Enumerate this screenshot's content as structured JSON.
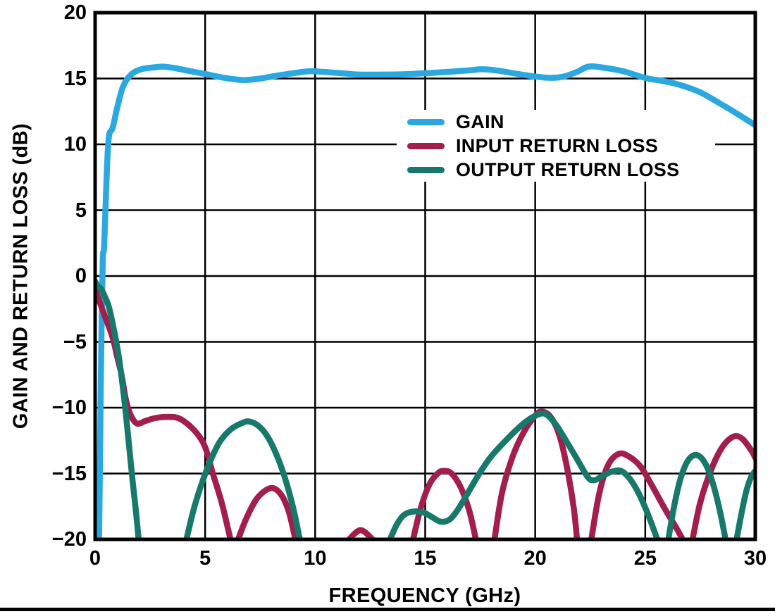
{
  "figure": {
    "background": "#ffffff",
    "frame_color": "#000000",
    "grid_color": "#000000"
  },
  "chart_data": {
    "type": "line",
    "title": "",
    "xlabel": "FREQUENCY (GHz)",
    "ylabel": "GAIN AND RETURN LOSS (dB)",
    "xlim": [
      0,
      30
    ],
    "ylim": [
      -20,
      20
    ],
    "xticks": [
      0,
      5,
      10,
      15,
      20,
      25,
      30
    ],
    "xtick_labels": [
      "0",
      "5",
      "10",
      "15",
      "20",
      "25",
      "30"
    ],
    "yticks": [
      20,
      15,
      10,
      5,
      0,
      -5,
      -10,
      -15,
      -20
    ],
    "ytick_labels": [
      "20",
      "15",
      "10",
      "5",
      "0",
      "−5",
      "−10",
      "−15",
      "−20"
    ],
    "grid": true,
    "legend_position": "upper-center",
    "series": [
      {
        "name": "GAIN",
        "color": "#2BA8DF",
        "segments": [
          [
            [
              0.18,
              -20
            ],
            [
              0.22,
              -14
            ],
            [
              0.26,
              -8
            ],
            [
              0.3,
              -3
            ],
            [
              0.34,
              0.5
            ],
            [
              0.36,
              1.7
            ],
            [
              0.4,
              2.0
            ],
            [
              0.44,
              3.6
            ],
            [
              0.5,
              6.5
            ],
            [
              0.56,
              9.0
            ],
            [
              0.62,
              10.5
            ],
            [
              0.68,
              10.95
            ],
            [
              0.76,
              11.1
            ],
            [
              0.85,
              11.6
            ],
            [
              0.95,
              12.4
            ],
            [
              1.05,
              13.1
            ],
            [
              1.25,
              14.3
            ],
            [
              1.5,
              15.05
            ],
            [
              1.8,
              15.5
            ],
            [
              2.2,
              15.75
            ],
            [
              2.7,
              15.85
            ],
            [
              3.1,
              15.9
            ],
            [
              3.6,
              15.8
            ],
            [
              4.2,
              15.6
            ],
            [
              5.0,
              15.35
            ],
            [
              5.7,
              15.1
            ],
            [
              6.3,
              14.95
            ],
            [
              6.8,
              14.88
            ],
            [
              7.5,
              15.0
            ],
            [
              8.2,
              15.2
            ],
            [
              9.0,
              15.4
            ],
            [
              9.7,
              15.55
            ],
            [
              10.4,
              15.5
            ],
            [
              11.2,
              15.4
            ],
            [
              12.0,
              15.3
            ],
            [
              13.0,
              15.3
            ],
            [
              14.0,
              15.32
            ],
            [
              15.0,
              15.4
            ],
            [
              16.0,
              15.5
            ],
            [
              17.0,
              15.62
            ],
            [
              17.6,
              15.7
            ],
            [
              18.3,
              15.6
            ],
            [
              19.2,
              15.35
            ],
            [
              20.0,
              15.15
            ],
            [
              20.7,
              15.05
            ],
            [
              21.3,
              15.15
            ],
            [
              21.9,
              15.5
            ],
            [
              22.4,
              15.9
            ],
            [
              23.0,
              15.85
            ],
            [
              24.0,
              15.55
            ],
            [
              25.0,
              15.05
            ],
            [
              26.0,
              14.75
            ],
            [
              26.7,
              14.45
            ],
            [
              27.5,
              13.95
            ],
            [
              28.4,
              13.1
            ],
            [
              29.2,
              12.3
            ],
            [
              30,
              11.45
            ]
          ]
        ]
      },
      {
        "name": "INPUT RETURN LOSS",
        "color": "#A31D4D",
        "segments": [
          [
            [
              0,
              -1.0
            ],
            [
              0.15,
              -1.7
            ],
            [
              0.3,
              -2.4
            ],
            [
              0.5,
              -3.3
            ],
            [
              0.7,
              -4.2
            ],
            [
              0.85,
              -5.0
            ],
            [
              1.0,
              -6.1
            ],
            [
              1.2,
              -7.5
            ],
            [
              1.4,
              -9.4
            ],
            [
              1.6,
              -10.5
            ],
            [
              1.9,
              -11.2
            ],
            [
              2.3,
              -11.0
            ],
            [
              2.7,
              -10.8
            ],
            [
              3.2,
              -10.7
            ],
            [
              3.7,
              -10.75
            ],
            [
              4.1,
              -11.1
            ],
            [
              4.6,
              -11.9
            ],
            [
              5.0,
              -13.0
            ],
            [
              5.35,
              -15.0
            ],
            [
              5.75,
              -17.2
            ],
            [
              6.15,
              -20
            ]
          ],
          [
            [
              6.5,
              -20
            ],
            [
              6.9,
              -18.3
            ],
            [
              7.4,
              -16.8
            ],
            [
              8.0,
              -16.1
            ],
            [
              8.45,
              -16.6
            ],
            [
              8.8,
              -17.9
            ],
            [
              9.1,
              -20
            ]
          ],
          [
            [
              11.55,
              -20
            ],
            [
              11.8,
              -19.55
            ],
            [
              12.05,
              -19.3
            ],
            [
              12.3,
              -19.5
            ],
            [
              12.6,
              -20
            ]
          ],
          [
            [
              14.45,
              -20
            ],
            [
              14.8,
              -17.6
            ],
            [
              15.2,
              -15.8
            ],
            [
              15.6,
              -14.95
            ],
            [
              15.9,
              -14.8
            ],
            [
              16.2,
              -15.0
            ],
            [
              16.6,
              -16.0
            ],
            [
              17.0,
              -17.8
            ],
            [
              17.3,
              -20
            ]
          ],
          [
            [
              18.15,
              -20
            ],
            [
              18.5,
              -16.4
            ],
            [
              19.0,
              -13.6
            ],
            [
              19.5,
              -11.8
            ],
            [
              20.0,
              -10.6
            ],
            [
              20.3,
              -10.3
            ],
            [
              20.7,
              -10.7
            ],
            [
              21.1,
              -12.1
            ],
            [
              21.45,
              -14.6
            ],
            [
              21.75,
              -17.6
            ],
            [
              21.9,
              -20
            ]
          ],
          [
            [
              22.55,
              -20
            ],
            [
              22.9,
              -16.6
            ],
            [
              23.3,
              -14.4
            ],
            [
              23.8,
              -13.5
            ],
            [
              24.3,
              -13.75
            ],
            [
              24.8,
              -14.5
            ],
            [
              25.3,
              -15.9
            ],
            [
              25.9,
              -17.7
            ],
            [
              26.4,
              -19.1
            ],
            [
              26.7,
              -20
            ]
          ],
          [
            [
              27.15,
              -20
            ],
            [
              27.5,
              -17.2
            ],
            [
              28.0,
              -14.7
            ],
            [
              28.5,
              -13.0
            ],
            [
              29.0,
              -12.2
            ],
            [
              29.4,
              -12.35
            ],
            [
              29.8,
              -13.2
            ],
            [
              30,
              -13.8
            ]
          ]
        ]
      },
      {
        "name": "OUTPUT RETURN LOSS",
        "color": "#17786C",
        "segments": [
          [
            [
              0,
              -0.4
            ],
            [
              0.12,
              -0.75
            ],
            [
              0.28,
              -1.0
            ],
            [
              0.45,
              -1.6
            ],
            [
              0.6,
              -2.2
            ],
            [
              0.72,
              -3.0
            ],
            [
              0.82,
              -3.8
            ],
            [
              0.95,
              -4.9
            ],
            [
              1.1,
              -6.4
            ],
            [
              1.25,
              -8.3
            ],
            [
              1.4,
              -10.5
            ],
            [
              1.55,
              -13.0
            ],
            [
              1.7,
              -15.5
            ],
            [
              1.85,
              -17.8
            ],
            [
              1.98,
              -20
            ]
          ],
          [
            [
              4.15,
              -20
            ],
            [
              4.5,
              -17.6
            ],
            [
              4.9,
              -15.5
            ],
            [
              5.3,
              -13.8
            ],
            [
              5.7,
              -12.5
            ],
            [
              6.2,
              -11.6
            ],
            [
              6.7,
              -11.15
            ],
            [
              7.0,
              -11.05
            ],
            [
              7.4,
              -11.35
            ],
            [
              7.8,
              -12.1
            ],
            [
              8.2,
              -13.4
            ],
            [
              8.6,
              -15.2
            ],
            [
              9.0,
              -17.6
            ],
            [
              9.3,
              -20
            ]
          ],
          [
            [
              13.4,
              -20
            ],
            [
              13.7,
              -18.9
            ],
            [
              14.0,
              -18.2
            ],
            [
              14.4,
              -17.9
            ],
            [
              14.9,
              -17.95
            ],
            [
              15.3,
              -18.3
            ],
            [
              15.7,
              -18.65
            ],
            [
              16.1,
              -18.5
            ],
            [
              16.5,
              -17.7
            ],
            [
              17.0,
              -16.3
            ],
            [
              17.5,
              -14.9
            ],
            [
              18.0,
              -13.7
            ],
            [
              18.6,
              -12.6
            ],
            [
              19.2,
              -11.6
            ],
            [
              19.8,
              -10.8
            ],
            [
              20.4,
              -10.45
            ],
            [
              20.9,
              -11.2
            ],
            [
              21.4,
              -12.5
            ],
            [
              21.9,
              -13.9
            ],
            [
              22.4,
              -15.3
            ],
            [
              22.7,
              -15.5
            ],
            [
              23.1,
              -15.15
            ],
            [
              23.5,
              -14.85
            ],
            [
              23.9,
              -14.8
            ],
            [
              24.3,
              -15.4
            ],
            [
              24.7,
              -16.5
            ],
            [
              25.1,
              -18.0
            ],
            [
              25.55,
              -20
            ]
          ],
          [
            [
              26.05,
              -20
            ],
            [
              26.3,
              -17.6
            ],
            [
              26.6,
              -15.4
            ],
            [
              26.95,
              -14.0
            ],
            [
              27.35,
              -13.6
            ],
            [
              27.75,
              -14.3
            ],
            [
              28.1,
              -15.9
            ],
            [
              28.4,
              -17.9
            ],
            [
              28.65,
              -20
            ]
          ],
          [
            [
              29.15,
              -20
            ],
            [
              29.4,
              -17.8
            ],
            [
              29.6,
              -16.3
            ],
            [
              29.8,
              -15.3
            ],
            [
              30,
              -14.8
            ]
          ]
        ]
      }
    ]
  }
}
